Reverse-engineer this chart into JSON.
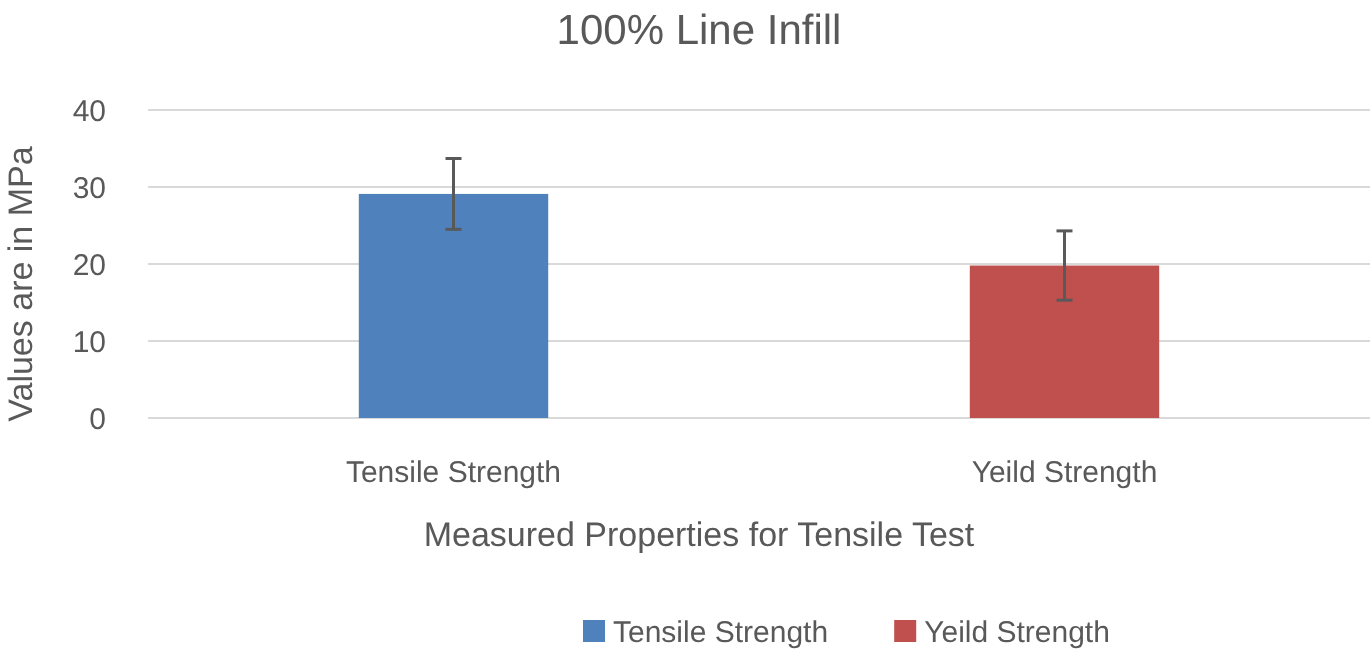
{
  "chart_data": {
    "type": "bar",
    "title": "100% Line Infill",
    "xlabel": "Measured Properties for Tensile Test",
    "ylabel": "Values are in MPa",
    "categories": [
      "Tensile Strength",
      "Yeild Strength"
    ],
    "stacked": true,
    "series": [
      {
        "name": "Tensile Strength",
        "color": "#4f81bd",
        "values": [
          29.1,
          null
        ],
        "errors": [
          4.6,
          null
        ]
      },
      {
        "name": "Yeild Strength",
        "color": "#c0504d",
        "values": [
          null,
          19.8
        ],
        "errors": [
          null,
          4.5
        ]
      }
    ],
    "ylim": [
      0,
      40
    ],
    "yticks": [
      0,
      10,
      20,
      30,
      40
    ],
    "grid": "y",
    "legend": "bottom"
  }
}
